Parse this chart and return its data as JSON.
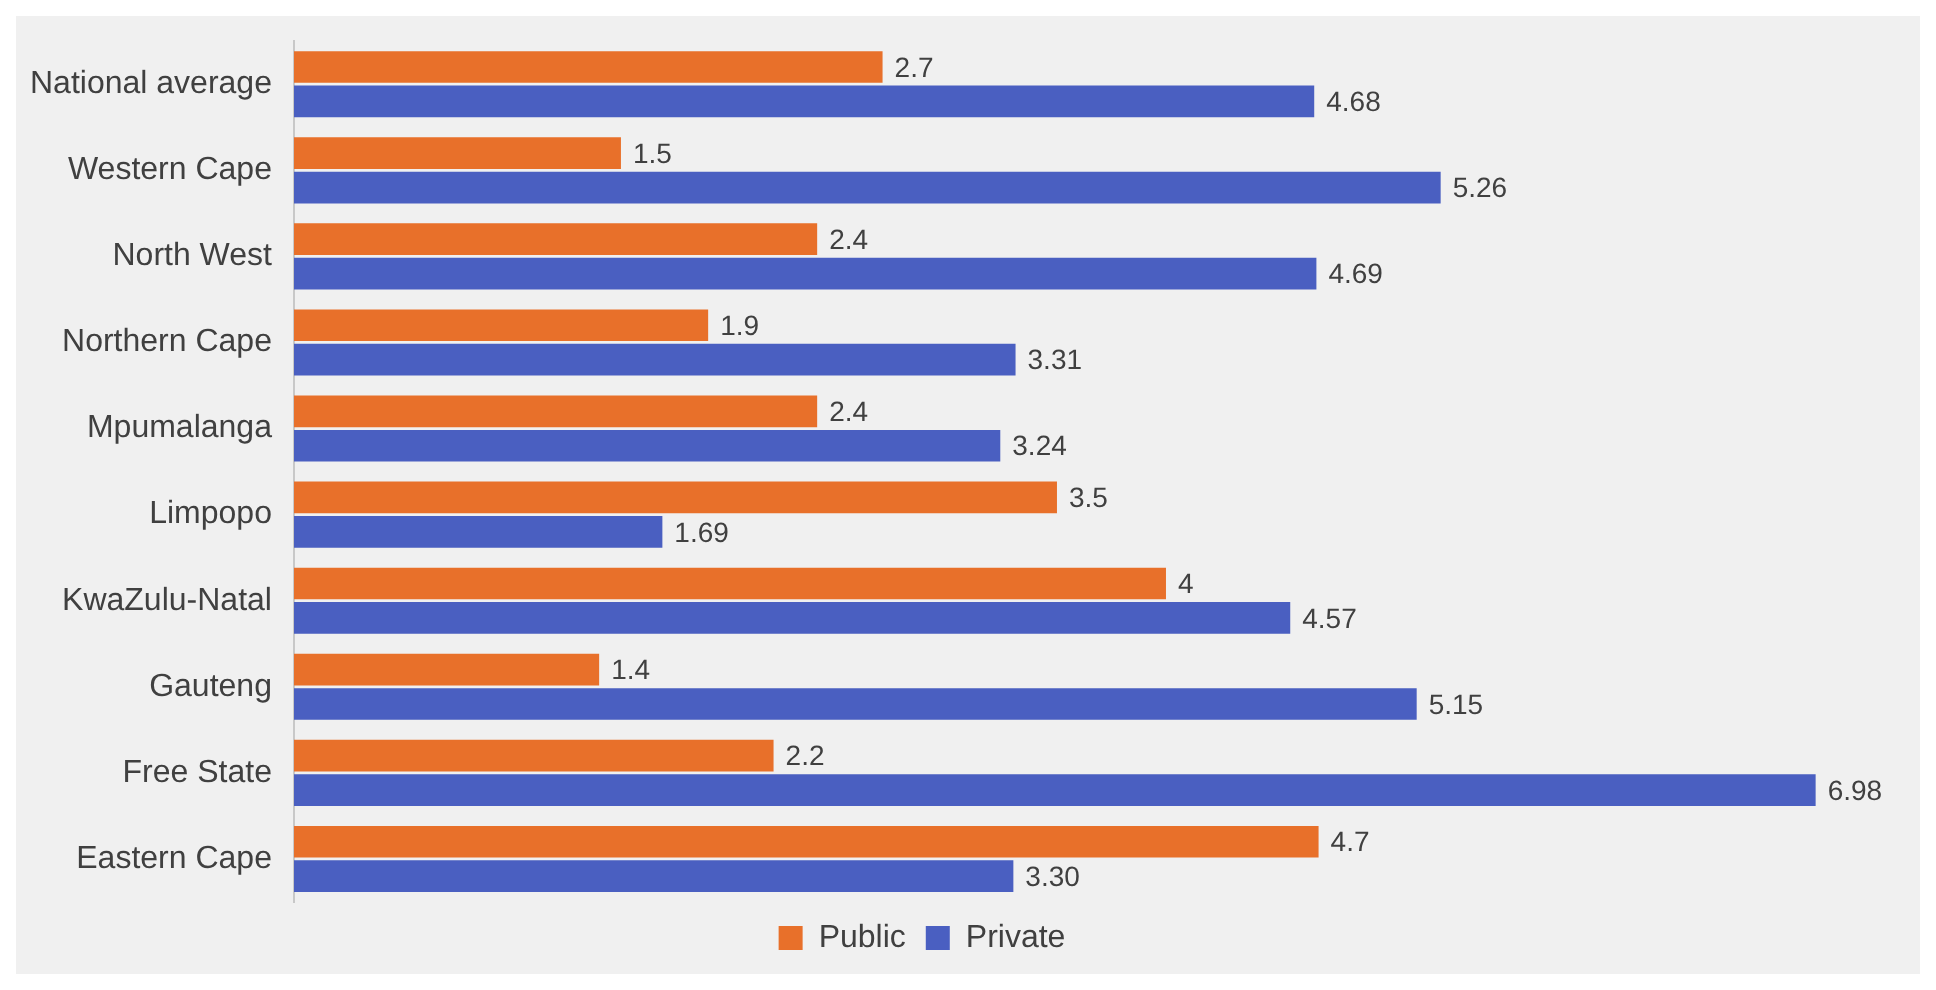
{
  "chart_data": {
    "type": "bar",
    "orientation": "horizontal",
    "categories": [
      "National average",
      "Western Cape",
      "North West",
      "Northern Cape",
      "Mpumalanga",
      "Limpopo",
      "KwaZulu-Natal",
      "Gauteng",
      "Free State",
      "Eastern Cape"
    ],
    "series": [
      {
        "name": "Public",
        "color": "#e8702a",
        "values": [
          2.7,
          1.5,
          2.4,
          1.9,
          2.4,
          3.5,
          4,
          1.4,
          2.2,
          4.7
        ],
        "value_labels": [
          "2.7",
          "1.5",
          "2.4",
          "1.9",
          "2.4",
          "3.5",
          "4",
          "1.4",
          "2.2",
          "4.7"
        ]
      },
      {
        "name": "Private",
        "color": "#4a5fc1",
        "values": [
          4.68,
          5.26,
          4.69,
          3.31,
          3.24,
          1.69,
          4.57,
          5.15,
          6.98,
          3.3
        ],
        "value_labels": [
          "4.68",
          "5.26",
          "4.69",
          "3.31",
          "3.24",
          "1.69",
          "4.57",
          "5.15",
          "6.98",
          "3.30"
        ]
      }
    ],
    "legend": "bottom"
  }
}
